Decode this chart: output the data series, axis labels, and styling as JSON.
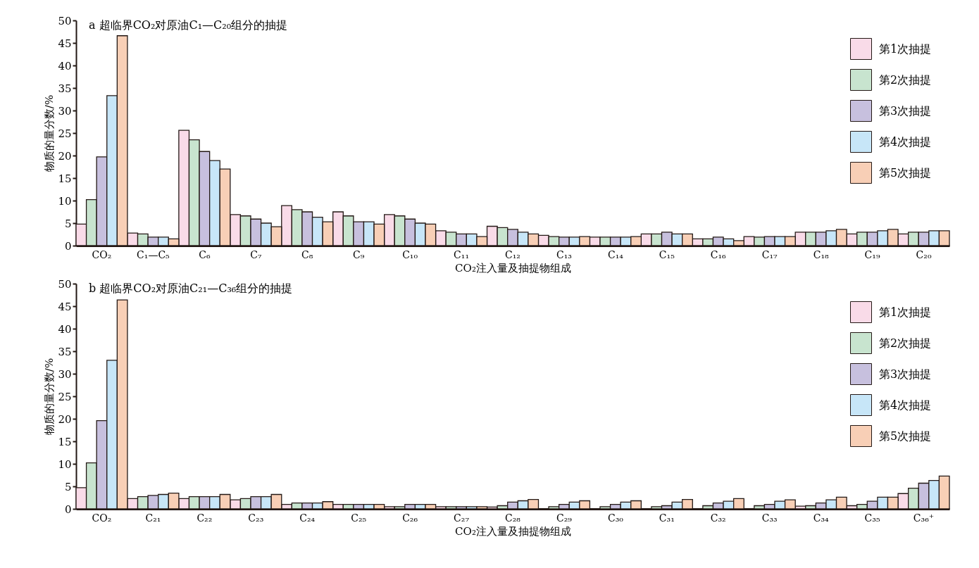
{
  "chart_data": [
    {
      "type": "bar",
      "title": "a 超临界CO₂对原油C₁—C₂₀组分的抽提",
      "xlabel": "CO₂注入量及抽提物组成",
      "ylabel": "物质的量分数/%",
      "categories": [
        "CO₂",
        "C₁—C₅",
        "C₆",
        "C₇",
        "C₈",
        "C₉",
        "C₁₀",
        "C₁₁",
        "C₁₂",
        "C₁₃",
        "C₁₄",
        "C₁₅",
        "C₁₆",
        "C₁₇",
        "C₁₈",
        "C₁₉",
        "C₂₀"
      ],
      "ylim": [
        0,
        50
      ],
      "yticks": [
        0,
        5,
        10,
        15,
        20,
        25,
        30,
        35,
        40,
        45,
        50
      ],
      "grid": false,
      "legend": "top right",
      "series": [
        {
          "name": "第1次抽提",
          "color": "#f9dbe8",
          "values": [
            4.8,
            2.8,
            25.6,
            6.9,
            8.9,
            7.5,
            6.9,
            3.3,
            4.3,
            2.3,
            1.9,
            2.6,
            1.5,
            2.0,
            3.0,
            2.6,
            2.6
          ]
        },
        {
          "name": "第2次抽提",
          "color": "#c8e4cf",
          "values": [
            10.2,
            2.6,
            23.5,
            6.6,
            8.0,
            6.6,
            6.6,
            3.0,
            4.0,
            2.0,
            1.9,
            2.6,
            1.5,
            1.9,
            3.0,
            3.0,
            3.0
          ]
        },
        {
          "name": "第3次抽提",
          "color": "#c7c0de",
          "values": [
            19.7,
            1.9,
            20.9,
            5.9,
            7.5,
            5.3,
            5.9,
            2.6,
            3.6,
            1.9,
            1.9,
            3.0,
            1.9,
            2.0,
            3.0,
            3.0,
            3.0
          ]
        },
        {
          "name": "第4次抽提",
          "color": "#c7e6f8",
          "values": [
            33.3,
            1.9,
            18.9,
            5.0,
            6.3,
            5.3,
            5.0,
            2.6,
            3.0,
            1.9,
            1.9,
            2.6,
            1.5,
            2.0,
            3.3,
            3.3,
            3.3
          ]
        },
        {
          "name": "第5次抽提",
          "color": "#f8cfb6",
          "values": [
            46.6,
            1.5,
            17.0,
            4.2,
            5.3,
            4.8,
            4.8,
            2.0,
            2.6,
            2.0,
            2.0,
            2.6,
            1.1,
            2.0,
            3.6,
            3.6,
            3.3
          ]
        }
      ]
    },
    {
      "type": "bar",
      "title": "b 超临界CO₂对原油C₂₁—C₃₆组分的抽提",
      "xlabel": "CO₂注入量及抽提物组成",
      "ylabel": "物质的量分数/%",
      "categories": [
        "CO₂",
        "C₂₁",
        "C₂₂",
        "C₂₃",
        "C₂₄",
        "C₂₅",
        "C₂₆",
        "C₂₇",
        "C₂₈",
        "C₂₉",
        "C₃₀",
        "C₃₁",
        "C₃₂",
        "C₃₃",
        "C₃₄",
        "C₃₅",
        "C₃₆⁺"
      ],
      "ylim": [
        0,
        50
      ],
      "yticks": [
        0,
        5,
        10,
        15,
        20,
        25,
        30,
        35,
        40,
        45,
        50
      ],
      "grid": false,
      "legend": "top right",
      "series": [
        {
          "name": "第1次抽提",
          "color": "#f9dbe8",
          "values": [
            4.7,
            2.3,
            2.3,
            2.0,
            1.0,
            1.0,
            0.5,
            0.5,
            0.4,
            null,
            null,
            null,
            null,
            null,
            0.6,
            0.7,
            3.4
          ]
        },
        {
          "name": "第2次抽提",
          "color": "#c8e4cf",
          "values": [
            10.2,
            2.7,
            2.7,
            2.3,
            1.3,
            1.0,
            0.5,
            0.5,
            0.7,
            0.5,
            0.5,
            0.5,
            0.7,
            0.7,
            0.7,
            1.0,
            4.6
          ]
        },
        {
          "name": "第3次抽提",
          "color": "#c7c0de",
          "values": [
            19.6,
            3.0,
            2.7,
            2.7,
            1.3,
            1.0,
            1.0,
            0.5,
            1.5,
            1.0,
            1.0,
            0.7,
            1.3,
            1.0,
            1.3,
            1.7,
            5.7
          ]
        },
        {
          "name": "第4次抽提",
          "color": "#c7e6f8",
          "values": [
            33.0,
            3.2,
            2.7,
            2.7,
            1.3,
            1.0,
            1.0,
            0.5,
            1.8,
            1.5,
            1.5,
            1.5,
            1.7,
            1.7,
            2.0,
            2.6,
            6.3
          ]
        },
        {
          "name": "第5次抽提",
          "color": "#f8cfb6",
          "values": [
            46.4,
            3.5,
            3.2,
            3.2,
            1.6,
            1.0,
            1.0,
            0.5,
            2.1,
            1.8,
            1.8,
            2.1,
            2.3,
            2.0,
            2.6,
            2.6,
            7.3
          ]
        }
      ]
    }
  ]
}
